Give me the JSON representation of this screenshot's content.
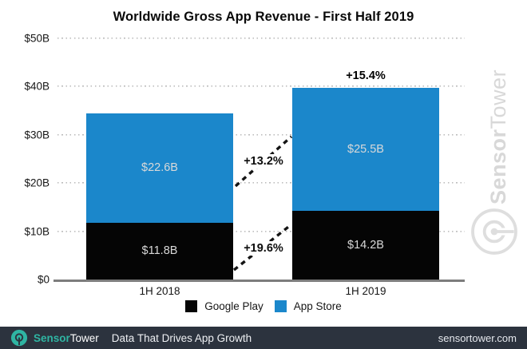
{
  "chart_data": {
    "type": "bar",
    "stacked": true,
    "title": "Worldwide Gross App Revenue - First Half 2019",
    "categories": [
      "1H 2018",
      "1H 2019"
    ],
    "series": [
      {
        "name": "Google Play",
        "color": "#050505",
        "values": [
          11.8,
          14.2
        ],
        "value_labels": [
          "$11.8B",
          "$14.2B"
        ]
      },
      {
        "name": "App Store",
        "color": "#1b87cb",
        "values": [
          22.6,
          25.5
        ],
        "value_labels": [
          "$22.6B",
          "$25.5B"
        ]
      }
    ],
    "totals": [
      34.4,
      39.7
    ],
    "annotations": {
      "total_growth_label": "+15.4%",
      "app_store_growth_label": "+13.2%",
      "google_play_growth_label": "+19.6%"
    },
    "y_axis": {
      "ticks": [
        "$0",
        "$10B",
        "$20B",
        "$30B",
        "$40B",
        "$50B"
      ],
      "tick_values": [
        0,
        10,
        20,
        30,
        40,
        50
      ],
      "max": 50
    },
    "legend": [
      "Google Play",
      "App Store"
    ],
    "legend_position": "bottom",
    "grid": "dotted-horizontal"
  },
  "watermark": {
    "brand_bold": "Sensor",
    "brand_light": "Tower",
    "color": "#d8d8d8"
  },
  "footer": {
    "brand_bold": "Sensor",
    "brand_light": "Tower",
    "tagline": "Data That Drives App Growth",
    "website": "sensortower.com",
    "accent_color": "#2fb5a3",
    "bg_color": "#2c333e"
  }
}
